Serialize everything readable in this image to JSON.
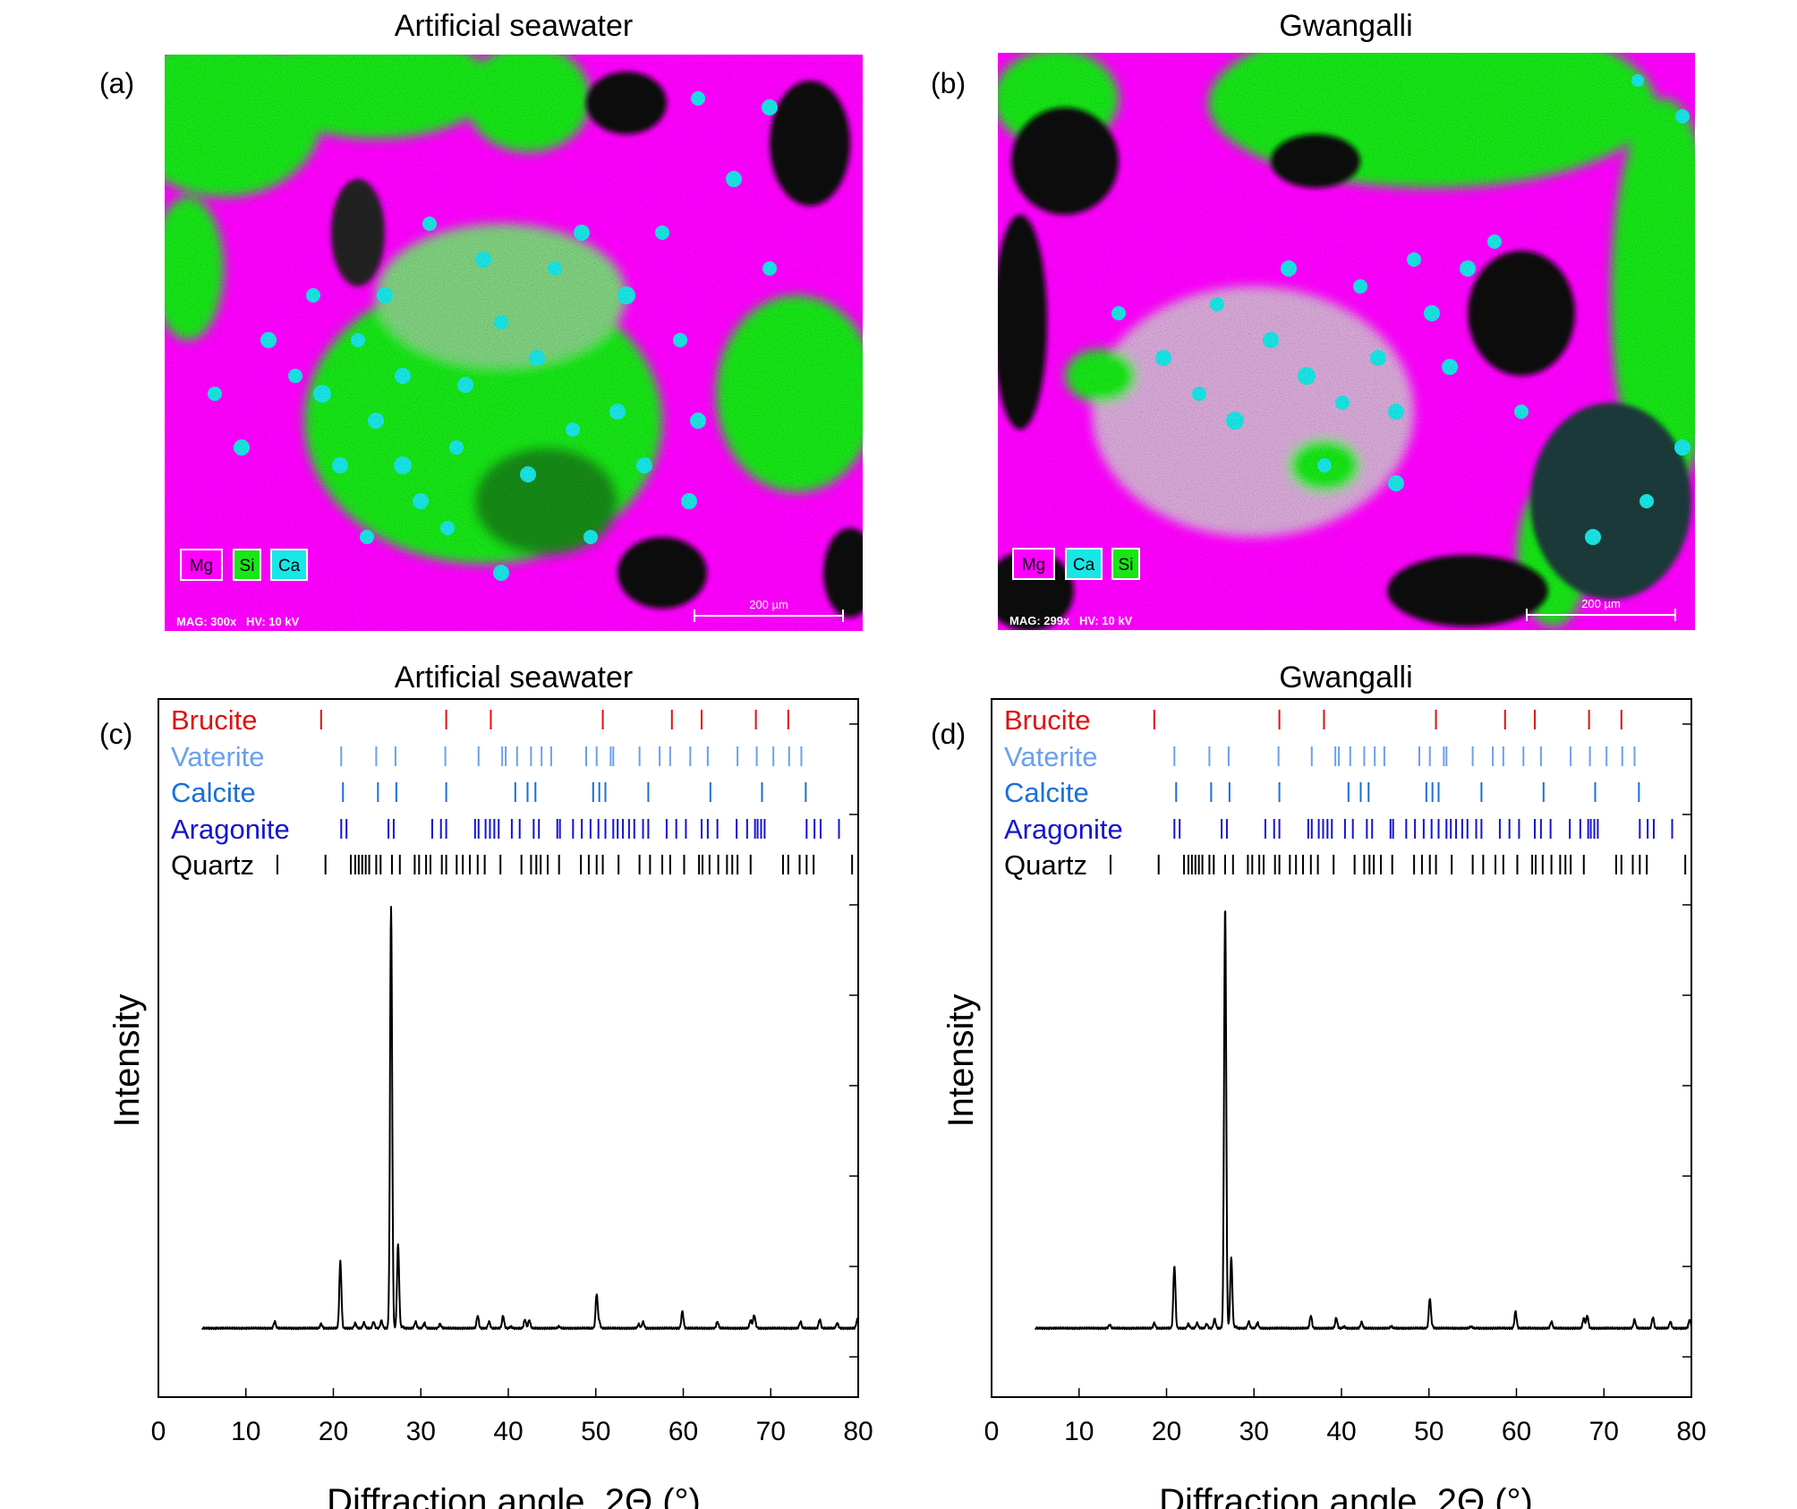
{
  "colors": {
    "magenta": "#ff00ff",
    "green": "#19e619",
    "cyan": "#19e6e6",
    "black": "#000000",
    "brucite": "#e01010",
    "vaterite": "#6aa0ee",
    "calcite": "#1a6fd8",
    "aragonite": "#1414d0",
    "quartz": "#000000"
  },
  "panels": {
    "a": {
      "panel_label": "(a)",
      "title": "Artificial seawater",
      "legend": [
        "Mg",
        "Si",
        "Ca"
      ],
      "legend_colors": [
        "#ff00ff",
        "#19e619",
        "#19e6e6"
      ],
      "footer": "MAG: 300x   HV: 10 kV",
      "scalebar": "200 µm",
      "icon": "eds-element-map-image"
    },
    "b": {
      "panel_label": "(b)",
      "title": "Gwangalli",
      "legend": [
        "Mg",
        "Ca",
        "Si"
      ],
      "legend_colors": [
        "#ff00ff",
        "#19e6e6",
        "#19e619"
      ],
      "footer": "MAG: 299x   HV: 10 kV",
      "scalebar": "200 µm",
      "icon": "eds-element-map-image"
    },
    "c": {
      "panel_label": "(c)",
      "title": "Artificial seawater",
      "ylabel": "Intensity",
      "xlabel": "Diffraction angle, 2Θ (°)"
    },
    "d": {
      "panel_label": "(d)",
      "title": "Gwangalli",
      "ylabel": "Intensity",
      "xlabel": "Diffraction angle, 2Θ (°)"
    }
  },
  "chart_data": [
    {
      "type": "line",
      "panel": "(c)",
      "title": "Artificial seawater",
      "xlabel": "Diffraction angle, 2Θ (°)",
      "ylabel": "Intensity",
      "xlim": [
        0,
        80
      ],
      "xticks": [
        0,
        10,
        20,
        30,
        40,
        50,
        60,
        70,
        80
      ],
      "ylim": [
        0,
        100
      ],
      "grid": false,
      "baseline": 2.6,
      "series": [
        {
          "peaks": [
            [
              13.3,
              1.5
            ],
            [
              18.6,
              1.0
            ],
            [
              20.8,
              18
            ],
            [
              22.5,
              1.2
            ],
            [
              23.5,
              1.3
            ],
            [
              24.6,
              1.5
            ],
            [
              25.5,
              1.8
            ],
            [
              26.6,
              100
            ],
            [
              27.4,
              22
            ],
            [
              27.9,
              3
            ],
            [
              29.4,
              1.5
            ],
            [
              30.4,
              1.2
            ],
            [
              32.2,
              1.0
            ],
            [
              36.5,
              5.5
            ],
            [
              37.8,
              1.5
            ],
            [
              39.4,
              5.5
            ],
            [
              40.3,
              3
            ],
            [
              41.9,
              2
            ],
            [
              42.4,
              4.5
            ],
            [
              45.8,
              3
            ],
            [
              50.1,
              10.5
            ],
            [
              50.4,
              4
            ],
            [
              54.9,
              3.5
            ],
            [
              55.4,
              1.5
            ],
            [
              59.9,
              6.5
            ],
            [
              63.9,
              1.5
            ],
            [
              67.7,
              4.5
            ],
            [
              68.1,
              5.5
            ],
            [
              68.3,
              3
            ],
            [
              73.4,
              1.5
            ],
            [
              75.6,
              2
            ],
            [
              77.6,
              1.2
            ],
            [
              79.9,
              2
            ]
          ]
        }
      ],
      "reference_phases": [
        {
          "name": "Brucite",
          "peaks": [
            18.6,
            32.9,
            38.0,
            50.8,
            58.7,
            62.1,
            68.3,
            72.0
          ]
        },
        {
          "name": "Vaterite",
          "peaks": [
            20.9,
            24.9,
            27.1,
            32.8,
            36.6,
            39.3,
            39.7,
            41.0,
            42.6,
            43.8,
            44.9,
            48.9,
            50.1,
            51.7,
            52.0,
            55.0,
            57.3,
            58.5,
            60.8,
            62.8,
            66.2,
            68.4,
            70.3,
            72.1,
            73.5
          ]
        },
        {
          "name": "Calcite",
          "peaks": [
            21.1,
            25.1,
            27.2,
            32.9,
            40.8,
            42.2,
            43.1,
            49.7,
            50.4,
            51.1,
            56.0,
            63.1,
            69.0,
            74.0
          ]
        },
        {
          "name": "Aragonite",
          "peaks": [
            20.9,
            21.5,
            26.3,
            26.9,
            31.3,
            32.3,
            32.9,
            36.2,
            36.6,
            37.4,
            37.9,
            38.4,
            38.9,
            40.4,
            41.3,
            42.9,
            43.5,
            45.6,
            45.9,
            47.4,
            48.4,
            49.4,
            50.3,
            51.1,
            52.0,
            52.5,
            53.1,
            53.8,
            54.4,
            55.4,
            56.0,
            58.1,
            59.2,
            60.3,
            62.1,
            62.8,
            63.9,
            66.1,
            67.3,
            68.2,
            68.5,
            68.9,
            69.3,
            74.1,
            75.0,
            75.7,
            77.8
          ]
        },
        {
          "name": "Quartz",
          "peaks": [
            13.6,
            19.1,
            22.0,
            22.5,
            22.9,
            23.3,
            23.7,
            24.1,
            24.9,
            25.4,
            26.7,
            27.6,
            29.3,
            29.8,
            30.6,
            31.1,
            32.4,
            32.9,
            34.1,
            34.8,
            35.6,
            36.5,
            37.3,
            39.1,
            41.5,
            42.6,
            43.2,
            43.7,
            44.5,
            45.8,
            48.3,
            49.2,
            50.1,
            50.8,
            52.6,
            55.0,
            56.2,
            57.6,
            58.5,
            60.1,
            61.8,
            62.2,
            63.0,
            64.0,
            65.0,
            65.6,
            66.2,
            67.7,
            71.4,
            72.0,
            73.3,
            74.1,
            74.9,
            79.3
          ]
        }
      ]
    },
    {
      "type": "line",
      "panel": "(d)",
      "title": "Gwangalli",
      "xlabel": "Diffraction angle, 2Θ (°)",
      "ylabel": "Intensity",
      "xlim": [
        0,
        80
      ],
      "xticks": [
        0,
        10,
        20,
        30,
        40,
        50,
        60,
        70,
        80
      ],
      "ylim": [
        0,
        100
      ],
      "grid": false,
      "baseline": 2.6,
      "series": [
        {
          "peaks": [
            [
              13.5,
              0.8
            ],
            [
              18.6,
              1.2
            ],
            [
              20.9,
              17
            ],
            [
              22.5,
              1.0
            ],
            [
              23.5,
              1.2
            ],
            [
              24.6,
              1.0
            ],
            [
              25.5,
              2.2
            ],
            [
              26.7,
              100
            ],
            [
              27.4,
              19
            ],
            [
              27.9,
              3
            ],
            [
              29.4,
              1.5
            ],
            [
              30.4,
              1.3
            ],
            [
              36.5,
              5.5
            ],
            [
              39.4,
              5
            ],
            [
              40.3,
              3
            ],
            [
              42.3,
              4
            ],
            [
              45.7,
              3
            ],
            [
              50.1,
              9.5
            ],
            [
              50.4,
              3
            ],
            [
              54.8,
              3
            ],
            [
              59.9,
              6.5
            ],
            [
              64.0,
              1.5
            ],
            [
              67.7,
              5
            ],
            [
              68.1,
              5.5
            ],
            [
              73.5,
              2
            ],
            [
              75.6,
              2.5
            ],
            [
              77.6,
              1.5
            ],
            [
              79.8,
              2
            ]
          ]
        }
      ],
      "reference_phases": [
        {
          "name": "Brucite",
          "peaks": [
            18.6,
            32.9,
            38.0,
            50.8,
            58.7,
            62.1,
            68.3,
            72.0
          ]
        },
        {
          "name": "Vaterite",
          "peaks": [
            20.9,
            24.9,
            27.1,
            32.8,
            36.6,
            39.3,
            39.7,
            41.0,
            42.6,
            43.8,
            44.9,
            48.9,
            50.1,
            51.7,
            52.0,
            55.0,
            57.3,
            58.5,
            60.8,
            62.8,
            66.2,
            68.4,
            70.3,
            72.1,
            73.5
          ]
        },
        {
          "name": "Calcite",
          "peaks": [
            21.1,
            25.1,
            27.2,
            32.9,
            40.8,
            42.2,
            43.1,
            49.7,
            50.4,
            51.1,
            56.0,
            63.1,
            69.0,
            74.0
          ]
        },
        {
          "name": "Aragonite",
          "peaks": [
            20.9,
            21.5,
            26.3,
            26.9,
            31.3,
            32.3,
            32.9,
            36.2,
            36.6,
            37.4,
            37.9,
            38.4,
            38.9,
            40.4,
            41.3,
            42.9,
            43.5,
            45.6,
            45.9,
            47.4,
            48.4,
            49.4,
            50.3,
            51.1,
            52.0,
            52.5,
            53.1,
            53.8,
            54.4,
            55.4,
            56.0,
            58.1,
            59.2,
            60.3,
            62.1,
            62.8,
            63.9,
            66.1,
            67.3,
            68.2,
            68.5,
            68.9,
            69.3,
            74.1,
            75.0,
            75.7,
            77.8
          ]
        },
        {
          "name": "Quartz",
          "peaks": [
            13.6,
            19.1,
            22.0,
            22.5,
            22.9,
            23.3,
            23.7,
            24.1,
            24.9,
            25.4,
            26.7,
            27.6,
            29.3,
            29.8,
            30.6,
            31.1,
            32.4,
            32.9,
            34.1,
            34.8,
            35.6,
            36.5,
            37.3,
            39.1,
            41.5,
            42.6,
            43.2,
            43.7,
            44.5,
            45.8,
            48.3,
            49.2,
            50.1,
            50.8,
            52.6,
            55.0,
            56.2,
            57.6,
            58.5,
            60.1,
            61.8,
            62.2,
            63.0,
            64.0,
            65.0,
            65.6,
            66.2,
            67.7,
            71.4,
            72.0,
            73.3,
            74.1,
            74.9,
            79.3
          ]
        }
      ]
    }
  ]
}
